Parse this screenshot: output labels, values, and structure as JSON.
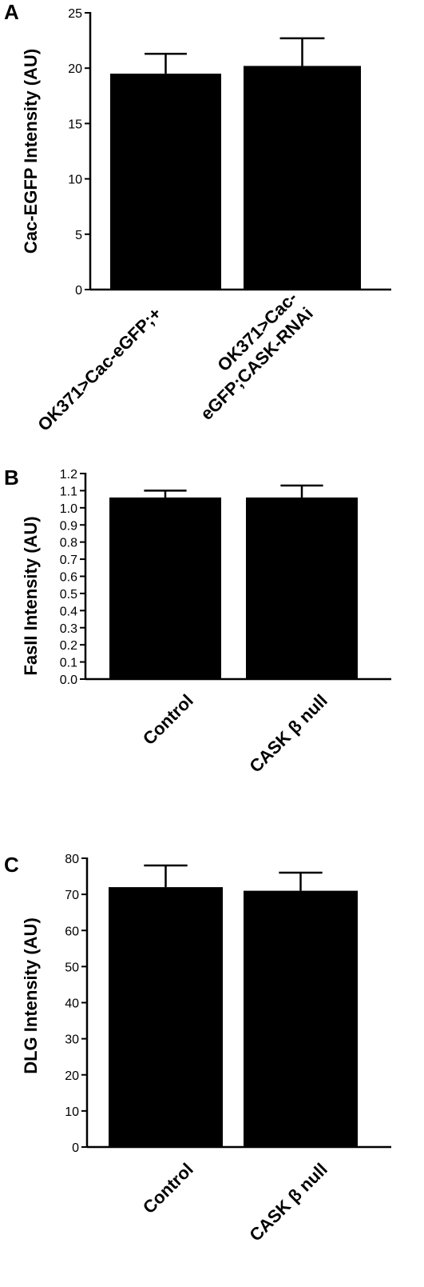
{
  "chart_data": [
    {
      "panel": "A",
      "type": "bar",
      "ylabel": "Cac-EGFP Intensity (AU)",
      "categories": [
        [
          "OK371>Cac-eGFP;+"
        ],
        [
          "OK371>Cac-",
          "eGFP;CASK-RNAi"
        ]
      ],
      "values": [
        19.5,
        20.2
      ],
      "errors": [
        1.8,
        2.5
      ],
      "ylim": [
        0,
        25
      ],
      "yticks": [
        "0",
        "5",
        "10",
        "15",
        "20",
        "25"
      ],
      "bar_color": "#000000"
    },
    {
      "panel": "B",
      "type": "bar",
      "ylabel": "FasII Intensity (AU)",
      "categories": [
        [
          "Control"
        ],
        [
          "CASK β null"
        ]
      ],
      "values": [
        1.06,
        1.06
      ],
      "errors": [
        0.04,
        0.07
      ],
      "ylim": [
        0,
        1.2
      ],
      "yticks": [
        "0.0",
        "0.1",
        "0.2",
        "0.3",
        "0.4",
        "0.5",
        "0.6",
        "0.7",
        "0.8",
        "0.9",
        "1.0",
        "1.1",
        "1.2"
      ],
      "bar_color": "#000000"
    },
    {
      "panel": "C",
      "type": "bar",
      "ylabel": "DLG Intensity (AU)",
      "categories": [
        [
          "Control"
        ],
        [
          "CASK β null"
        ]
      ],
      "values": [
        72,
        71
      ],
      "errors": [
        6,
        5
      ],
      "ylim": [
        0,
        80
      ],
      "yticks": [
        "0",
        "10",
        "20",
        "30",
        "40",
        "50",
        "60",
        "70",
        "80"
      ],
      "bar_color": "#000000"
    }
  ]
}
